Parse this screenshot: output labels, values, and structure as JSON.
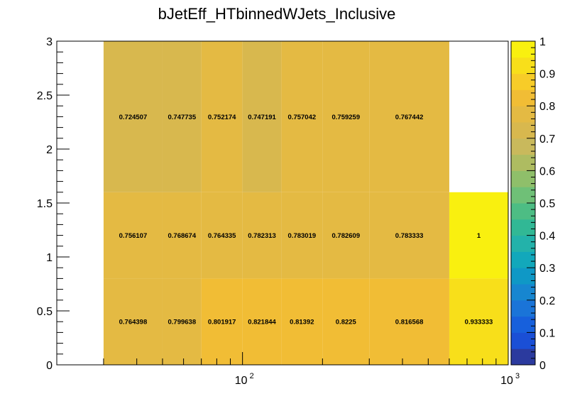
{
  "chart_data": {
    "type": "heatmap",
    "title": "bJetEff_HTbinnedWJets_Inclusive",
    "x_scale": "log",
    "xlim": [
      20,
      1000
    ],
    "ylim": [
      0,
      3
    ],
    "zlim": [
      0,
      1
    ],
    "x_edges": [
      30,
      50,
      70,
      100,
      140,
      200,
      300,
      600,
      1000
    ],
    "rows": [
      {
        "y_range": [
          0,
          0.8
        ],
        "values": [
          0.764398,
          0.799638,
          0.801917,
          0.821844,
          0.81392,
          0.8225,
          0.816568,
          0.933333
        ]
      },
      {
        "y_range": [
          0.8,
          1.6
        ],
        "values": [
          0.756107,
          0.768674,
          0.764335,
          0.782313,
          0.783019,
          0.782609,
          0.783333,
          1
        ]
      },
      {
        "y_range": [
          1.6,
          3.0
        ],
        "values": [
          0.724507,
          0.747735,
          0.752174,
          0.747191,
          0.757042,
          0.759259,
          0.767442,
          null
        ]
      }
    ],
    "x_ticks": [
      {
        "value": 100,
        "label": "10",
        "exp": "2"
      },
      {
        "value": 1000,
        "label": "10",
        "exp": "3"
      }
    ],
    "y_ticks": [
      {
        "value": 0,
        "label": "0"
      },
      {
        "value": 0.5,
        "label": "0.5"
      },
      {
        "value": 1,
        "label": "1"
      },
      {
        "value": 1.5,
        "label": "1.5"
      },
      {
        "value": 2,
        "label": "2"
      },
      {
        "value": 2.5,
        "label": "2.5"
      },
      {
        "value": 3,
        "label": "3"
      }
    ],
    "palette_ticks": [
      "0",
      "0.1",
      "0.2",
      "0.3",
      "0.4",
      "0.5",
      "0.6",
      "0.7",
      "0.8",
      "0.9",
      "1"
    ],
    "palette_colors": [
      "#2b3a9e",
      "#1a4fd6",
      "#1760dc",
      "#1a74d8",
      "#1786d0",
      "#0f98c6",
      "#12a8bb",
      "#23b2aa",
      "#31b895",
      "#4dbd84",
      "#6fc077",
      "#8fbf6a",
      "#aebc61",
      "#c9b95c",
      "#d8b84e",
      "#e4ba43",
      "#f1bd35",
      "#f7cc28",
      "#f8df1a",
      "#f9f00f"
    ]
  }
}
